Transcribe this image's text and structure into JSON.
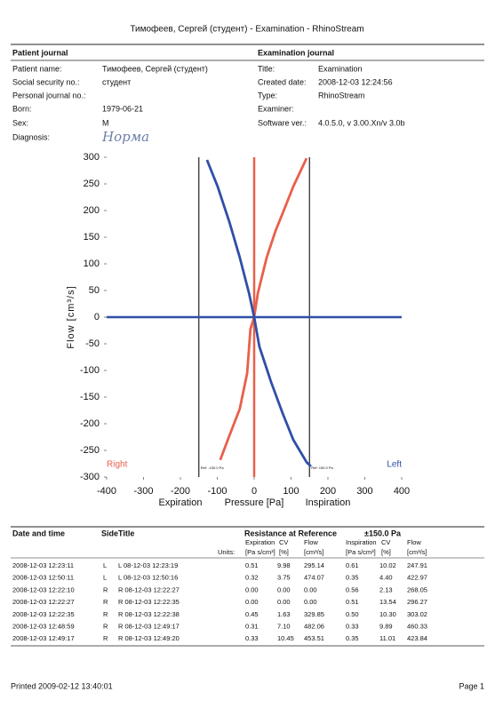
{
  "header": {
    "title": "Тимофеев, Сергей (студент) - Examination - RhinoStream"
  },
  "patient_journal": {
    "title": "Patient journal",
    "fields": [
      {
        "label": "Patient name:",
        "value": "Тимофеев, Сергей (студент)"
      },
      {
        "label": "Social security no.:",
        "value": "студент"
      },
      {
        "label": "Personal journal no.:"
      },
      {
        "label": "Born:",
        "value": "1979-06-21"
      },
      {
        "label": "Sex:",
        "value": "M"
      },
      {
        "label": "Diagnosis:",
        "value": "Норма"
      }
    ]
  },
  "examination_journal": {
    "title": "Examination journal",
    "fields": [
      {
        "label": "Title:",
        "value": "Examination"
      },
      {
        "label": "Created date:",
        "value": "2008-12-03 12:24:56"
      },
      {
        "label": "Type:",
        "value": "RhinoStream"
      },
      {
        "label": "Examiner:"
      },
      {
        "label": "Software ver.:",
        "value": "4.0.5.0, v 3.00.Xn/v 3.0b"
      }
    ]
  },
  "chart_data": {
    "type": "line",
    "xlabel": "Pressure [Pa]",
    "ylabel": "Flow [cm³/s]",
    "xlabel_left": "Expiration",
    "xlabel_right": "Inspiration",
    "xlim": [
      -400,
      400
    ],
    "xticks": [
      -400,
      -300,
      -200,
      -100,
      0,
      100,
      200,
      300,
      400
    ],
    "ylim": [
      -300,
      300
    ],
    "yticks": [
      -300,
      -250,
      -200,
      -150,
      -100,
      -50,
      0,
      50,
      100,
      150,
      200,
      250,
      300
    ],
    "reference_lines": [
      {
        "value": -150,
        "label": "Ref: -150.0 Pa"
      },
      {
        "value": 150,
        "label": "Ref: 150.0 Pa"
      }
    ],
    "series": [
      {
        "name": "Right",
        "color": "#e8604c",
        "x": [
          0,
          10,
          34,
          58,
          82,
          106,
          123,
          142,
          null,
          0,
          -10,
          -19,
          -39,
          -67,
          -92
        ],
        "values": [
          0,
          45,
          112,
          162,
          203,
          245,
          270,
          298,
          null,
          0,
          -22,
          -105,
          -172,
          -222,
          -268
        ]
      },
      {
        "name": "Left",
        "color": "#2f4fa8",
        "x": [
          0,
          -14,
          -39,
          -67,
          -99,
          -128,
          null,
          0,
          14,
          46,
          77,
          106,
          142,
          154
        ],
        "values": [
          0,
          45,
          112,
          178,
          245,
          295,
          null,
          0,
          -55,
          -122,
          -180,
          -230,
          -272,
          -280
        ]
      }
    ]
  },
  "table": {
    "columns": [
      "Date and time",
      "Side",
      "Title"
    ],
    "group_title": "Resistance at Reference",
    "reference": "±150.0 Pa",
    "sub_columns": [
      "Expiration",
      "CV",
      "Flow",
      "Inspiration",
      "CV",
      "Flow"
    ],
    "units_label": "Units:",
    "units": [
      "[Pa s/cm³]",
      "[%]",
      "[cm³/s]",
      "[Pa s/cm³]",
      "[%]",
      "[cm³/s]"
    ],
    "rows": [
      [
        "2008-12-03 12:23:11",
        "L",
        "L 08-12-03 12:23:19",
        "0.51",
        "9.98",
        "295.14",
        "0.61",
        "10.02",
        "247.91"
      ],
      [
        "2008-12-03 12:50:11",
        "L",
        "L 08-12-03 12:50:16",
        "0.32",
        "3.75",
        "474.07",
        "0.35",
        "4.40",
        "422.97"
      ],
      [
        "2008-12-03 12:22:10",
        "R",
        "R 08-12-03 12:22:27",
        "0.00",
        "0.00",
        "0.00",
        "0.56",
        "2.13",
        "268.05"
      ],
      [
        "2008-12-03 12:22:27",
        "R",
        "R 08-12-03 12:22:35",
        "0.00",
        "0.00",
        "0.00",
        "0.51",
        "13.54",
        "296.27"
      ],
      [
        "2008-12-03 12:22:35",
        "R",
        "R 08-12-03 12:22:38",
        "0.45",
        "1.63",
        "329.85",
        "0.50",
        "10.30",
        "303.02"
      ],
      [
        "2008-12-03 12:48:59",
        "R",
        "R 08-12-03 12:49:17",
        "0.31",
        "7.10",
        "482.06",
        "0.33",
        "9.89",
        "460.33"
      ],
      [
        "2008-12-03 12:49:17",
        "R",
        "R 08-12-03 12:49:20",
        "0.33",
        "10.45",
        "453.51",
        "0.35",
        "11.01",
        "423.84"
      ]
    ]
  },
  "footer": {
    "printed": "Printed 2009-02-12 13:40:01",
    "page": "Page 1"
  }
}
